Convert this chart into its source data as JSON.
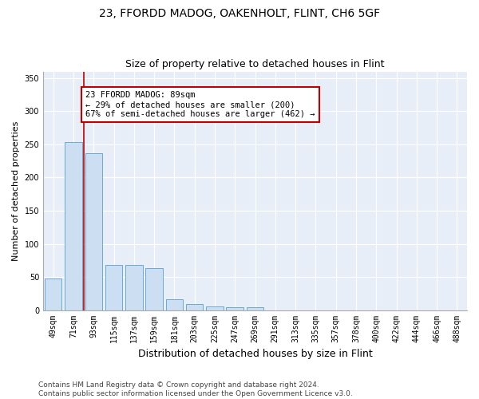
{
  "title1": "23, FFORDD MADOG, OAKENHOLT, FLINT, CH6 5GF",
  "title2": "Size of property relative to detached houses in Flint",
  "xlabel": "Distribution of detached houses by size in Flint",
  "ylabel": "Number of detached properties",
  "categories": [
    "49sqm",
    "71sqm",
    "93sqm",
    "115sqm",
    "137sqm",
    "159sqm",
    "181sqm",
    "203sqm",
    "225sqm",
    "247sqm",
    "269sqm",
    "291sqm",
    "313sqm",
    "335sqm",
    "357sqm",
    "378sqm",
    "400sqm",
    "422sqm",
    "444sqm",
    "466sqm",
    "488sqm"
  ],
  "values": [
    48,
    253,
    237,
    68,
    68,
    63,
    16,
    9,
    5,
    4,
    4,
    0,
    0,
    0,
    0,
    0,
    0,
    0,
    0,
    0,
    0
  ],
  "bar_color": "#ccdff2",
  "bar_edge_color": "#6aaad4",
  "vline_x": 1.5,
  "vline_color": "#c00000",
  "annotation_text": "23 FFORDD MADOG: 89sqm\n← 29% of detached houses are smaller (200)\n67% of semi-detached houses are larger (462) →",
  "annotation_box_color": "#ffffff",
  "annotation_box_edge": "#c00000",
  "ylim": [
    0,
    360
  ],
  "yticks": [
    0,
    50,
    100,
    150,
    200,
    250,
    300,
    350
  ],
  "footer": "Contains HM Land Registry data © Crown copyright and database right 2024.\nContains public sector information licensed under the Open Government Licence v3.0.",
  "plot_bg_color": "#e8eef8",
  "title1_fontsize": 10,
  "title2_fontsize": 9,
  "xlabel_fontsize": 9,
  "ylabel_fontsize": 8,
  "tick_fontsize": 7,
  "footer_fontsize": 6.5,
  "annotation_fontsize": 7.5
}
